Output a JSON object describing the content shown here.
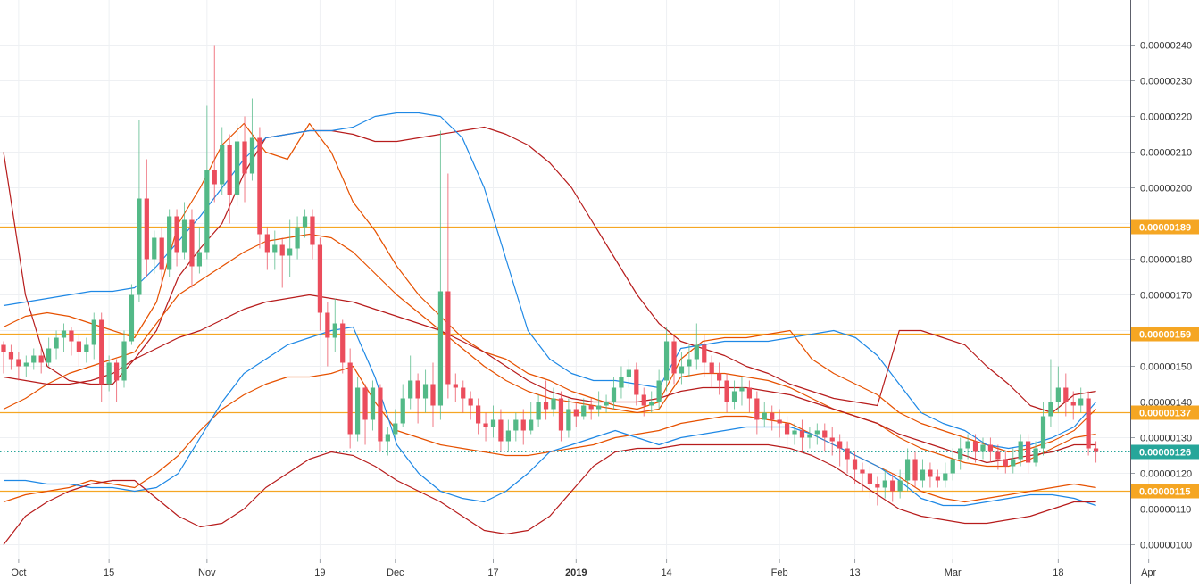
{
  "chart_data": {
    "type": "candlestick",
    "y_axis_ticks": [
      "0.00000100",
      "0.00000110",
      "0.00000120",
      "0.00000130",
      "0.00000140",
      "0.00000150",
      "0.00000160",
      "0.00000170",
      "0.00000180",
      "0.00000190",
      "0.00000200",
      "0.00000210",
      "0.00000220",
      "0.00000230",
      "0.00000240"
    ],
    "y_axis_values": [
      100,
      110,
      120,
      130,
      140,
      150,
      160,
      170,
      180,
      190,
      200,
      210,
      220,
      230,
      240
    ],
    "value_unit_scale": 1e-08,
    "x_axis_ticks": [
      {
        "label": "Oct",
        "index": 2
      },
      {
        "label": "15",
        "index": 14
      },
      {
        "label": "Nov",
        "index": 27
      },
      {
        "label": "19",
        "index": 42
      },
      {
        "label": "Dec",
        "index": 52
      },
      {
        "label": "17",
        "index": 65
      },
      {
        "label": "2019",
        "index": 76
      },
      {
        "label": "14",
        "index": 88
      },
      {
        "label": "Feb",
        "index": 103
      },
      {
        "label": "13",
        "index": 113
      },
      {
        "label": "Mar",
        "index": 126
      },
      {
        "label": "18",
        "index": 140
      },
      {
        "label": "Apr",
        "index": 152
      }
    ],
    "horizontal_levels": [
      {
        "label": "0.00000189",
        "value": 189,
        "color": "#f5a623"
      },
      {
        "label": "0.00000159",
        "value": 159,
        "color": "#f5a623"
      },
      {
        "label": "0.00000137",
        "value": 137,
        "color": "#f5a623"
      },
      {
        "label": "0.00000115",
        "value": 115,
        "color": "#f5a623"
      }
    ],
    "last_price": {
      "label": "0.00000126",
      "value": 126,
      "color": "#26a69a"
    },
    "candles": [
      [
        156,
        154,
        157,
        148
      ],
      [
        154,
        152,
        156,
        149
      ],
      [
        152,
        150,
        154,
        146
      ],
      [
        150,
        151,
        153,
        147
      ],
      [
        151,
        153,
        155,
        149
      ],
      [
        153,
        151,
        155,
        148
      ],
      [
        151,
        155,
        158,
        150
      ],
      [
        155,
        158,
        160,
        152
      ],
      [
        158,
        160,
        162,
        154
      ],
      [
        160,
        157,
        161,
        153
      ],
      [
        157,
        154,
        159,
        150
      ],
      [
        154,
        156,
        158,
        151
      ],
      [
        156,
        163,
        165,
        152
      ],
      [
        163,
        145,
        165,
        140
      ],
      [
        145,
        151,
        153,
        143
      ],
      [
        151,
        146,
        152,
        140
      ],
      [
        146,
        157,
        160,
        144
      ],
      [
        157,
        170,
        173,
        156
      ],
      [
        170,
        197,
        219,
        168
      ],
      [
        197,
        180,
        208,
        175
      ],
      [
        180,
        186,
        188,
        176
      ],
      [
        186,
        177,
        189,
        172
      ],
      [
        177,
        192,
        194,
        175
      ],
      [
        192,
        182,
        194,
        178
      ],
      [
        182,
        191,
        196,
        180
      ],
      [
        191,
        178,
        194,
        172
      ],
      [
        178,
        182,
        189,
        176
      ],
      [
        182,
        205,
        223,
        180
      ],
      [
        205,
        201,
        240,
        196
      ],
      [
        201,
        212,
        217,
        198
      ],
      [
        212,
        198,
        215,
        190
      ],
      [
        198,
        213,
        218,
        195
      ],
      [
        213,
        204,
        220,
        196
      ],
      [
        204,
        214,
        225,
        202
      ],
      [
        214,
        187,
        217,
        183
      ],
      [
        187,
        182,
        189,
        177
      ],
      [
        182,
        184,
        188,
        177
      ],
      [
        184,
        181,
        186,
        172
      ],
      [
        181,
        183,
        191,
        175
      ],
      [
        183,
        189,
        192,
        180
      ],
      [
        189,
        192,
        194,
        186
      ],
      [
        192,
        184,
        194,
        180
      ],
      [
        184,
        165,
        186,
        160
      ],
      [
        165,
        158,
        168,
        150
      ],
      [
        158,
        162,
        169,
        154
      ],
      [
        162,
        151,
        163,
        148
      ],
      [
        151,
        131,
        155,
        127
      ],
      [
        131,
        144,
        147,
        129
      ],
      [
        144,
        135,
        145,
        128
      ],
      [
        135,
        144,
        146,
        132
      ],
      [
        144,
        129,
        145,
        126
      ],
      [
        129,
        131,
        133,
        125
      ],
      [
        131,
        134,
        138,
        130
      ],
      [
        134,
        141,
        145,
        133
      ],
      [
        141,
        146,
        153,
        138
      ],
      [
        146,
        141,
        148,
        134
      ],
      [
        141,
        145,
        149,
        137
      ],
      [
        145,
        139,
        151,
        133
      ],
      [
        139,
        171,
        216,
        135
      ],
      [
        171,
        145,
        204,
        141
      ],
      [
        145,
        144,
        148,
        140
      ],
      [
        144,
        141,
        146,
        137
      ],
      [
        141,
        139,
        143,
        135
      ],
      [
        139,
        134,
        141,
        131
      ],
      [
        134,
        133,
        137,
        129
      ],
      [
        133,
        135,
        139,
        130
      ],
      [
        135,
        129,
        138,
        126
      ],
      [
        129,
        132,
        135,
        126
      ],
      [
        132,
        135,
        137,
        129
      ],
      [
        135,
        132,
        138,
        128
      ],
      [
        132,
        135,
        140,
        131
      ],
      [
        135,
        140,
        142,
        133
      ],
      [
        140,
        138,
        146,
        135
      ],
      [
        138,
        141,
        144,
        136
      ],
      [
        141,
        132,
        143,
        129
      ],
      [
        132,
        138,
        141,
        130
      ],
      [
        138,
        136,
        140,
        133
      ],
      [
        136,
        139,
        141,
        135
      ],
      [
        139,
        138,
        141,
        135
      ],
      [
        138,
        139,
        143,
        136
      ],
      [
        139,
        140,
        142,
        137
      ],
      [
        140,
        144,
        147,
        138
      ],
      [
        144,
        147,
        150,
        141
      ],
      [
        147,
        149,
        152,
        144
      ],
      [
        149,
        142,
        151,
        139
      ],
      [
        142,
        139,
        144,
        136
      ],
      [
        139,
        140,
        143,
        137
      ],
      [
        140,
        146,
        149,
        138
      ],
      [
        146,
        157,
        161,
        143
      ],
      [
        157,
        148,
        159,
        145
      ],
      [
        148,
        150,
        154,
        145
      ],
      [
        150,
        152,
        156,
        147
      ],
      [
        152,
        156,
        162,
        149
      ],
      [
        156,
        151,
        159,
        147
      ],
      [
        151,
        148,
        153,
        144
      ],
      [
        148,
        146,
        151,
        142
      ],
      [
        146,
        140,
        148,
        137
      ],
      [
        140,
        143,
        146,
        138
      ],
      [
        143,
        144,
        147,
        139
      ],
      [
        144,
        141,
        146,
        137
      ],
      [
        141,
        135,
        143,
        131
      ],
      [
        135,
        137,
        140,
        133
      ],
      [
        137,
        135,
        139,
        132
      ],
      [
        135,
        134,
        138,
        130
      ],
      [
        134,
        131,
        136,
        127
      ],
      [
        131,
        132,
        134,
        128
      ],
      [
        132,
        130,
        135,
        126
      ],
      [
        130,
        131,
        133,
        127
      ],
      [
        131,
        132,
        134,
        128
      ],
      [
        132,
        130,
        134,
        126
      ],
      [
        130,
        129,
        133,
        125
      ],
      [
        129,
        127,
        131,
        122
      ],
      [
        127,
        124,
        129,
        120
      ],
      [
        124,
        121,
        126,
        117
      ],
      [
        121,
        120,
        123,
        115
      ],
      [
        120,
        117,
        122,
        113
      ],
      [
        117,
        116,
        119,
        111
      ],
      [
        116,
        118,
        121,
        113
      ],
      [
        118,
        115,
        120,
        112
      ],
      [
        115,
        118,
        121,
        113
      ],
      [
        118,
        124,
        127,
        115
      ],
      [
        124,
        118,
        126,
        116
      ],
      [
        118,
        121,
        124,
        116
      ],
      [
        121,
        119,
        123,
        116
      ],
      [
        119,
        118,
        121,
        116
      ],
      [
        118,
        120,
        123,
        116
      ],
      [
        120,
        124,
        127,
        118
      ],
      [
        124,
        127,
        130,
        121
      ],
      [
        127,
        129,
        131,
        124
      ],
      [
        129,
        126,
        131,
        123
      ],
      [
        126,
        128,
        130,
        124
      ],
      [
        128,
        126,
        130,
        123
      ],
      [
        126,
        124,
        128,
        121
      ],
      [
        124,
        122,
        126,
        120
      ],
      [
        122,
        124,
        127,
        120
      ],
      [
        124,
        129,
        131,
        122
      ],
      [
        129,
        123,
        131,
        120
      ],
      [
        123,
        127,
        129,
        122
      ],
      [
        127,
        136,
        140,
        125
      ],
      [
        136,
        140,
        152,
        133
      ],
      [
        140,
        144,
        150,
        137
      ],
      [
        144,
        140,
        148,
        136
      ],
      [
        140,
        139,
        143,
        135
      ],
      [
        139,
        141,
        144,
        137
      ],
      [
        141,
        127,
        143,
        125
      ],
      [
        127,
        126,
        129,
        123
      ]
    ],
    "series": [
      {
        "color": "#b71c1c",
        "values": [
          210,
          170,
          150,
          146,
          145,
          145,
          152,
          160,
          175,
          183,
          190,
          204,
          214,
          215,
          216,
          216,
          215,
          213,
          213,
          214,
          215,
          216,
          217,
          215,
          212,
          207,
          200,
          190,
          180,
          170,
          162,
          157,
          155,
          153,
          150,
          148,
          145,
          143,
          141,
          140,
          139,
          160,
          160,
          158,
          156,
          150,
          145,
          139,
          137,
          142,
          143
        ]
      },
      {
        "color": "#e65100",
        "values": [
          161,
          164,
          165,
          164,
          162,
          160,
          158,
          168,
          190,
          200,
          212,
          218,
          210,
          208,
          218,
          210,
          196,
          188,
          178,
          170,
          164,
          158,
          154,
          152,
          148,
          146,
          143,
          141,
          139,
          138,
          140,
          152,
          157,
          158,
          158,
          159,
          160,
          152,
          148,
          145,
          142,
          137,
          134,
          132,
          130,
          128,
          126,
          127,
          129,
          132,
          138
        ]
      },
      {
        "color": "#1e88e5",
        "values": [
          167,
          168,
          169,
          170,
          171,
          171,
          172,
          178,
          185,
          192,
          200,
          208,
          214,
          215,
          216,
          216,
          217,
          220,
          221,
          221,
          220,
          214,
          200,
          180,
          160,
          152,
          148,
          146,
          146,
          145,
          144,
          155,
          156,
          157,
          157,
          157,
          158,
          159,
          160,
          158,
          153,
          145,
          137,
          134,
          132,
          128,
          127,
          128,
          130,
          133,
          140
        ]
      },
      {
        "color": "#e65100",
        "values": [
          138,
          141,
          145,
          148,
          150,
          152,
          154,
          162,
          170,
          174,
          178,
          182,
          185,
          186,
          187,
          186,
          182,
          176,
          170,
          165,
          160,
          155,
          150,
          146,
          143,
          141,
          140,
          139,
          138,
          137,
          138,
          147,
          148,
          148,
          147,
          146,
          144,
          141,
          138,
          136,
          134,
          130,
          127,
          125,
          123,
          122,
          122,
          124,
          127,
          130,
          131
        ]
      },
      {
        "color": "#b71c1c",
        "values": [
          147,
          146,
          145,
          145,
          146,
          148,
          152,
          155,
          158,
          160,
          163,
          166,
          168,
          169,
          170,
          169,
          168,
          166,
          164,
          162,
          160,
          157,
          154,
          150,
          146,
          143,
          141,
          140,
          140,
          140,
          141,
          143,
          144,
          144,
          144,
          143,
          142,
          140,
          138,
          136,
          134,
          131,
          129,
          127,
          125,
          123,
          124,
          125,
          126,
          128,
          128
        ]
      },
      {
        "color": "#e65100",
        "values": [
          112,
          114,
          115,
          116,
          118,
          117,
          116,
          120,
          125,
          132,
          138,
          142,
          145,
          147,
          147,
          148,
          150,
          140,
          132,
          130,
          128,
          127,
          126,
          125,
          125,
          126,
          127,
          128,
          130,
          131,
          132,
          134,
          135,
          136,
          136,
          135,
          134,
          131,
          128,
          125,
          122,
          119,
          115,
          113,
          112,
          113,
          114,
          115,
          116,
          117,
          116
        ]
      },
      {
        "color": "#1e88e5",
        "values": [
          118,
          118,
          117,
          117,
          116,
          116,
          115,
          116,
          120,
          130,
          140,
          148,
          152,
          156,
          158,
          160,
          161,
          147,
          128,
          120,
          115,
          113,
          112,
          115,
          120,
          126,
          128,
          130,
          132,
          130,
          128,
          130,
          131,
          132,
          133,
          133,
          133,
          131,
          128,
          125,
          122,
          118,
          113,
          111,
          111,
          112,
          113,
          114,
          114,
          113,
          111
        ]
      },
      {
        "color": "#b71c1c",
        "values": [
          100,
          108,
          112,
          115,
          117,
          118,
          118,
          113,
          108,
          105,
          106,
          110,
          116,
          120,
          124,
          126,
          125,
          122,
          118,
          115,
          112,
          108,
          104,
          103,
          104,
          108,
          115,
          122,
          126,
          127,
          127,
          128,
          128,
          128,
          128,
          128,
          127,
          125,
          122,
          118,
          114,
          110,
          108,
          107,
          106,
          106,
          107,
          108,
          110,
          112,
          112
        ]
      }
    ]
  }
}
